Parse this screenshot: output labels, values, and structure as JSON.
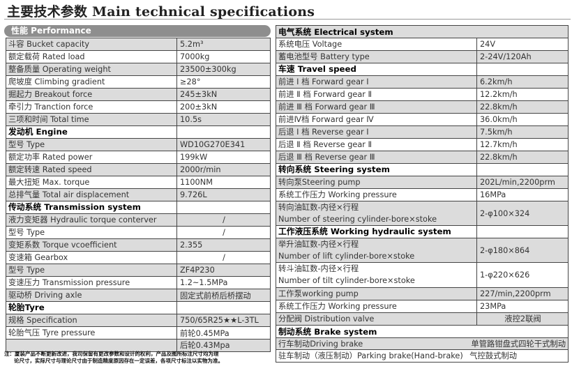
{
  "title": "主要技术参数 Main technical specifications",
  "performance_header": "性能 Performance",
  "left_rows": [
    {
      "label": "斗容 Bucket capacity",
      "value": "5.2m³",
      "shade": true
    },
    {
      "label": "额定载荷 Rated load",
      "value": "7000kg",
      "shade": false
    },
    {
      "label": "整备质量 Operating weight",
      "value": "23500±300kg",
      "shade": true
    },
    {
      "label": "爬坡度 Climbing gradient",
      "value": "≥28°",
      "shade": false
    },
    {
      "label": "掘起力 Breakout force",
      "value": "245±3kN",
      "shade": true
    },
    {
      "label": "牵引力 Tranction force",
      "value": "200±3kN",
      "shade": false
    },
    {
      "label": "三项和时间 Total time",
      "value": "10.5s",
      "shade": true
    },
    {
      "label": "发动机 Engine",
      "value": "",
      "head": true
    },
    {
      "label": "型号 Type",
      "value": "WD10G270E341",
      "shade": true
    },
    {
      "label": "额定功率 Rated power",
      "value": "199kW",
      "shade": false
    },
    {
      "label": "额定转速 Rated speed",
      "value": "2000r/min",
      "shade": true
    },
    {
      "label": "最大扭矩 Max. torque",
      "value": "1100NM",
      "shade": false
    },
    {
      "label": "总排气量 Total air displacement",
      "value": "9.726L",
      "shade": true
    },
    {
      "label": "传动系统 Transmission system",
      "value": "",
      "head": true
    },
    {
      "label": "液力变矩器 Hydraulic torque conterver",
      "value": "/",
      "shade": true,
      "center": true
    },
    {
      "label": "型号 Type",
      "value": "/",
      "shade": false,
      "center": true
    },
    {
      "label": "变矩系数 Torque vcoefficient",
      "value": "2.355",
      "shade": true
    },
    {
      "label": "变速箱 Gearbox",
      "value": "/",
      "shade": false,
      "center": true
    },
    {
      "label": "型号 Type",
      "value": "ZF4P230",
      "shade": true
    },
    {
      "label": "变速压力 Transmission pressure",
      "value": "1.2~1.5MPa",
      "shade": false
    },
    {
      "label": "驱动桥 Driving axle",
      "value": "固定式前桥后桥摆动",
      "shade": true
    },
    {
      "label": "轮胎Tyre",
      "value": "",
      "head": true
    },
    {
      "label": "规格 Specification",
      "value": "750/65R25★★L-3TL",
      "shade": true
    },
    {
      "label": "轮胎气压 Tyre pressure",
      "value": "前轮0.45MPa",
      "shade": false
    },
    {
      "label": "",
      "value": "后轮0.43Mpa",
      "shade": true
    }
  ],
  "right_rows": [
    {
      "label": "电气系统 Electrical system",
      "head": true,
      "shade": true,
      "span": true
    },
    {
      "label": "系统电压 Voltage",
      "value": "24V"
    },
    {
      "label": "蓄电池型号 Battery type",
      "value": "2-24V/120Ah",
      "shade": true
    },
    {
      "label": "车速 Travel speed",
      "value": "",
      "head": true
    },
    {
      "label": "前进 Ⅰ 档 Forward gear Ⅰ",
      "value": "6.2km/h",
      "shade": true
    },
    {
      "label": "前进 Ⅱ 档 Forward gear Ⅱ",
      "value": "12.2km/h"
    },
    {
      "label": "前进 Ⅲ 档 Forward gear Ⅲ",
      "value": "22.8km/h",
      "shade": true
    },
    {
      "label": "前进Ⅳ档 Forward gear Ⅳ",
      "value": "36.0km/h"
    },
    {
      "label": "后退 Ⅰ 档 Reverse gear Ⅰ",
      "value": "7.5km/h",
      "shade": true
    },
    {
      "label": "后退 Ⅱ 档 Reverse gear Ⅱ",
      "value": "12.7km/h"
    },
    {
      "label": "后退 Ⅲ 档 Reverse gear Ⅲ",
      "value": "22.8km/h",
      "shade": true
    },
    {
      "label": "转向系统 Steering system",
      "value": "",
      "head": true
    },
    {
      "label": "转向泵Steering pump",
      "value": "202L/min,2200prm",
      "shade": true
    },
    {
      "label": "系统工作压力 Working pressure",
      "value": "16MPa"
    },
    {
      "label": "转向油缸数-内径×行程",
      "label2": "Number of steering cylinder-bore×stoke",
      "value": "2-φ100×324",
      "shade": true
    },
    {
      "label": "工作液压系统 Working hydraulic system",
      "value": "",
      "head": true
    },
    {
      "label": "举升油缸数-内径×行程",
      "label2": "Number of lift cylinder-bore×stoke",
      "value": "2-φ180×864",
      "shade": true
    },
    {
      "label": "转斗油缸数-内径×行程",
      "label2": "Number of tilt cylinder-bore×stoke",
      "value": "1-φ220×626"
    },
    {
      "label": "工作泵working pump",
      "value": "227/min,2200prm",
      "shade": true
    },
    {
      "label": "系统工作压力 Working pressure",
      "value": "23MPa"
    },
    {
      "label": "分配阀 Distribution valve",
      "value": "液控2联阀",
      "shade": true,
      "center": true
    },
    {
      "label": "制动系统 Brake system",
      "head": true,
      "span": true
    },
    {
      "label": "行车制动Driving brake",
      "value": "单管路钳盘式四轮干式制动",
      "shade": true,
      "span": true
    },
    {
      "label": "驻车制动（液压制动）Parking brake(Hand-brake)",
      "value": "气控鼓式制动",
      "span": true
    }
  ],
  "note": [
    "注：厦装产品不断更新改进，我司保留有更改参数和设计的权利，产品及图所标注尺寸均为理",
    "论尺寸，实际尺寸与理论尺寸由于制造精度原因存在一定误差，各项尺寸标注以实物为准。"
  ]
}
